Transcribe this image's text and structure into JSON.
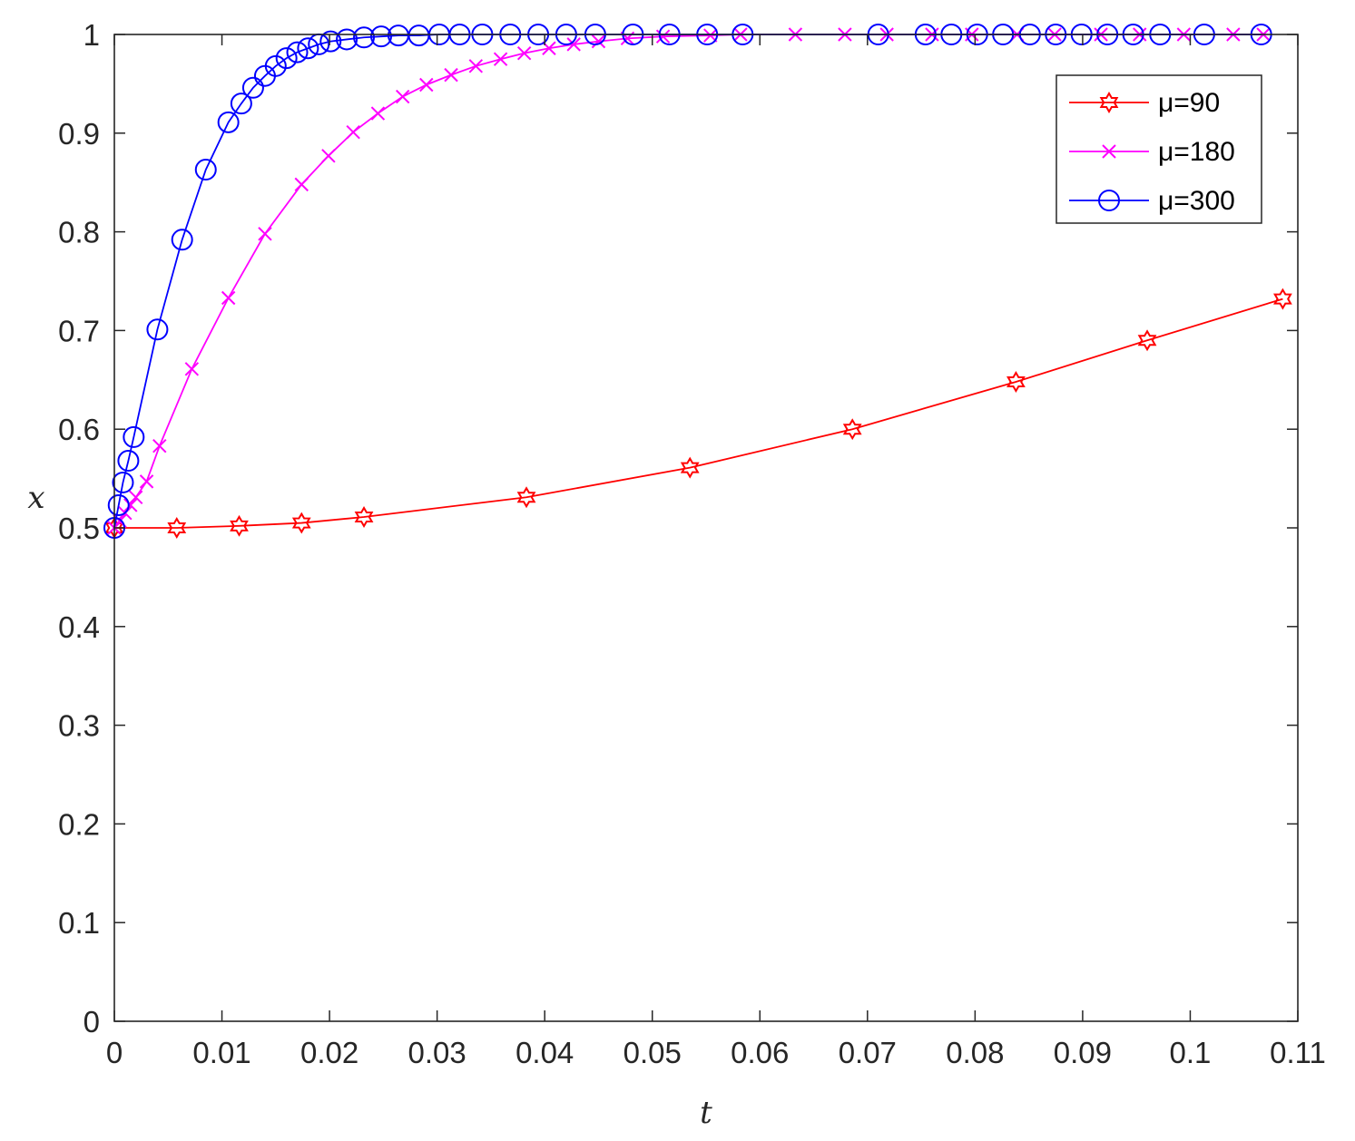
{
  "chart_data": {
    "type": "line",
    "xlabel": "t",
    "ylabel": "x",
    "xlim": [
      0,
      0.11
    ],
    "ylim": [
      0,
      1
    ],
    "x_ticks": [
      0,
      0.01,
      0.02,
      0.03,
      0.04,
      0.05,
      0.06,
      0.07,
      0.08,
      0.09,
      0.1,
      0.11
    ],
    "x_tick_labels": [
      "0",
      "0.01",
      "0.02",
      "0.03",
      "0.04",
      "0.05",
      "0.06",
      "0.07",
      "0.08",
      "0.09",
      "0.1",
      "0.11"
    ],
    "y_ticks": [
      0,
      0.1,
      0.2,
      0.3,
      0.4,
      0.5,
      0.6,
      0.7,
      0.8,
      0.9,
      1
    ],
    "y_tick_labels": [
      "0",
      "0.1",
      "0.2",
      "0.3",
      "0.4",
      "0.5",
      "0.6",
      "0.7",
      "0.8",
      "0.9",
      "1"
    ],
    "grid": false,
    "legend_position": "top-right",
    "series": [
      {
        "name": "μ=90",
        "color": "#ff0000",
        "marker": "hexagram",
        "x": [
          0,
          0.0058,
          0.0116,
          0.0174,
          0.0232,
          0.0383,
          0.0535,
          0.0686,
          0.0838,
          0.096,
          0.1086
        ],
        "y": [
          0.5,
          0.5,
          0.502,
          0.505,
          0.511,
          0.531,
          0.561,
          0.6,
          0.648,
          0.69,
          0.732
        ]
      },
      {
        "name": "μ=180",
        "color": "#ff00ff",
        "marker": "x",
        "x": [
          0,
          0.0005,
          0.001,
          0.0015,
          0.002,
          0.003,
          0.0042,
          0.0072,
          0.0106,
          0.014,
          0.0174,
          0.0199,
          0.0222,
          0.0245,
          0.0268,
          0.029,
          0.0313,
          0.0336,
          0.0359,
          0.0381,
          0.0404,
          0.0427,
          0.045,
          0.0477,
          0.051,
          0.0554,
          0.0582,
          0.0633,
          0.0679,
          0.0718,
          0.076,
          0.0797,
          0.0839,
          0.0874,
          0.0917,
          0.0953,
          0.0994,
          0.104,
          0.1068
        ],
        "y": [
          0.5,
          0.507,
          0.515,
          0.523,
          0.531,
          0.547,
          0.583,
          0.661,
          0.733,
          0.798,
          0.848,
          0.877,
          0.901,
          0.92,
          0.937,
          0.949,
          0.959,
          0.968,
          0.975,
          0.981,
          0.986,
          0.99,
          0.993,
          0.996,
          0.998,
          0.999,
          1.0,
          1.0,
          1.0,
          1.0,
          1.0,
          1.0,
          1.0,
          1.0,
          1.0,
          1.0,
          1.0,
          1.0,
          1.0
        ]
      },
      {
        "name": "μ=300",
        "color": "#0000ff",
        "marker": "circle",
        "x": [
          0,
          0.0004,
          0.0008,
          0.0013,
          0.0018,
          0.004,
          0.0063,
          0.0085,
          0.0106,
          0.0118,
          0.0129,
          0.014,
          0.015,
          0.016,
          0.017,
          0.018,
          0.019,
          0.0201,
          0.0216,
          0.0232,
          0.0248,
          0.0264,
          0.0283,
          0.0302,
          0.0321,
          0.0342,
          0.0368,
          0.0394,
          0.042,
          0.0447,
          0.0482,
          0.0516,
          0.0551,
          0.0584,
          0.071,
          0.0754,
          0.0778,
          0.0802,
          0.0826,
          0.0851,
          0.0875,
          0.0899,
          0.0923,
          0.0947,
          0.0972,
          0.1013,
          0.1066
        ],
        "y": [
          0.5,
          0.523,
          0.546,
          0.568,
          0.592,
          0.701,
          0.792,
          0.863,
          0.911,
          0.93,
          0.946,
          0.958,
          0.968,
          0.976,
          0.982,
          0.986,
          0.99,
          0.993,
          0.995,
          0.997,
          0.998,
          0.999,
          0.999,
          1.0,
          1.0,
          1.0,
          1.0,
          1.0,
          1.0,
          1.0,
          1.0,
          1.0,
          1.0,
          1.0,
          1.0,
          1.0,
          1.0,
          1.0,
          1.0,
          1.0,
          1.0,
          1.0,
          1.0,
          1.0,
          1.0,
          1.0,
          1.0
        ]
      }
    ]
  }
}
